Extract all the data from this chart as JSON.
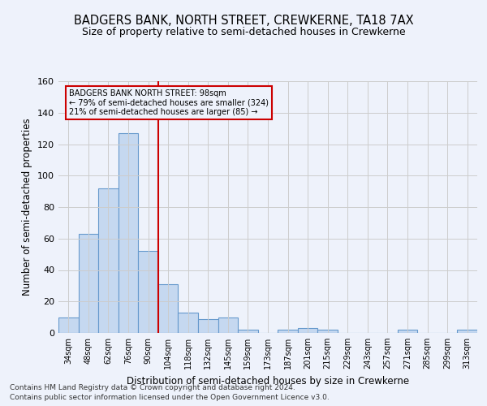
{
  "title": "BADGERS BANK, NORTH STREET, CREWKERNE, TA18 7AX",
  "subtitle": "Size of property relative to semi-detached houses in Crewkerne",
  "xlabel": "Distribution of semi-detached houses by size in Crewkerne",
  "ylabel": "Number of semi-detached properties",
  "categories": [
    "34sqm",
    "48sqm",
    "62sqm",
    "76sqm",
    "90sqm",
    "104sqm",
    "118sqm",
    "132sqm",
    "145sqm",
    "159sqm",
    "173sqm",
    "187sqm",
    "201sqm",
    "215sqm",
    "229sqm",
    "243sqm",
    "257sqm",
    "271sqm",
    "285sqm",
    "299sqm",
    "313sqm"
  ],
  "values": [
    10,
    63,
    92,
    127,
    52,
    31,
    13,
    9,
    10,
    2,
    0,
    2,
    3,
    2,
    0,
    0,
    0,
    2,
    0,
    0,
    2
  ],
  "bar_color": "#c5d8f0",
  "bar_edge_color": "#6699cc",
  "vline_x": 4.5,
  "vline_color": "#cc0000",
  "annotation_box_edge_color": "#cc0000",
  "property_label": "BADGERS BANK NORTH STREET: 98sqm",
  "smaller_line": "← 79% of semi-detached houses are smaller (324)",
  "larger_line": "21% of semi-detached houses are larger (85) →",
  "ylim": [
    0,
    160
  ],
  "yticks": [
    0,
    20,
    40,
    60,
    80,
    100,
    120,
    140,
    160
  ],
  "grid_color": "#cccccc",
  "bg_color": "#eef2fb",
  "footnote1": "Contains HM Land Registry data © Crown copyright and database right 2024.",
  "footnote2": "Contains public sector information licensed under the Open Government Licence v3.0."
}
